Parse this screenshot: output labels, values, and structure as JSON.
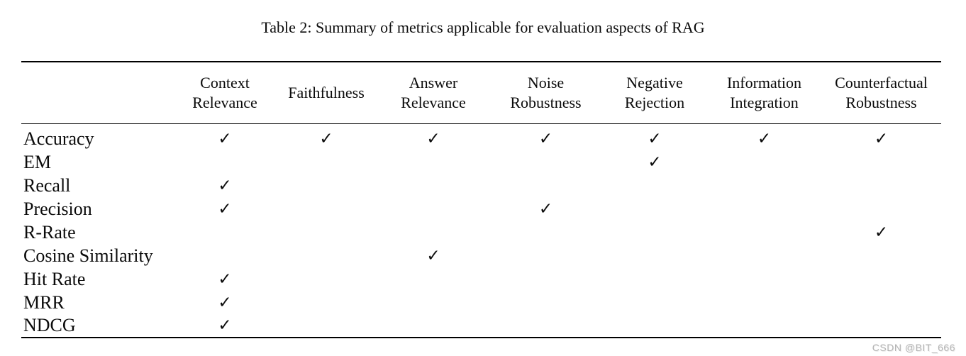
{
  "caption": "Table 2: Summary of metrics applicable for evaluation aspects of RAG",
  "table": {
    "check_symbol": "✓",
    "columns": [
      "Context\nRelevance",
      "Faithfulness",
      "Answer\nRelevance",
      "Noise\nRobustness",
      "Negative\nRejection",
      "Information\nIntegration",
      "Counterfactual\nRobustness"
    ],
    "rows": [
      {
        "label": "Accuracy",
        "checks": [
          1,
          1,
          1,
          1,
          1,
          1,
          1
        ]
      },
      {
        "label": "EM",
        "checks": [
          0,
          0,
          0,
          0,
          1,
          0,
          0
        ]
      },
      {
        "label": "Recall",
        "checks": [
          1,
          0,
          0,
          0,
          0,
          0,
          0
        ]
      },
      {
        "label": "Precision",
        "checks": [
          1,
          0,
          0,
          1,
          0,
          0,
          0
        ]
      },
      {
        "label": "R-Rate",
        "checks": [
          0,
          0,
          0,
          0,
          0,
          0,
          1
        ]
      },
      {
        "label": "Cosine Similarity",
        "checks": [
          0,
          0,
          1,
          0,
          0,
          0,
          0
        ]
      },
      {
        "label": "Hit Rate",
        "checks": [
          1,
          0,
          0,
          0,
          0,
          0,
          0
        ]
      },
      {
        "label": "MRR",
        "checks": [
          1,
          0,
          0,
          0,
          0,
          0,
          0
        ]
      },
      {
        "label": "NDCG",
        "checks": [
          1,
          0,
          0,
          0,
          0,
          0,
          0
        ]
      }
    ]
  },
  "page": {
    "watermark": "CSDN @BIT_666"
  },
  "colors": {
    "background": "#ffffff",
    "text": "#0b0b0b",
    "rule": "#000000",
    "watermark": "#b3b3b3"
  }
}
